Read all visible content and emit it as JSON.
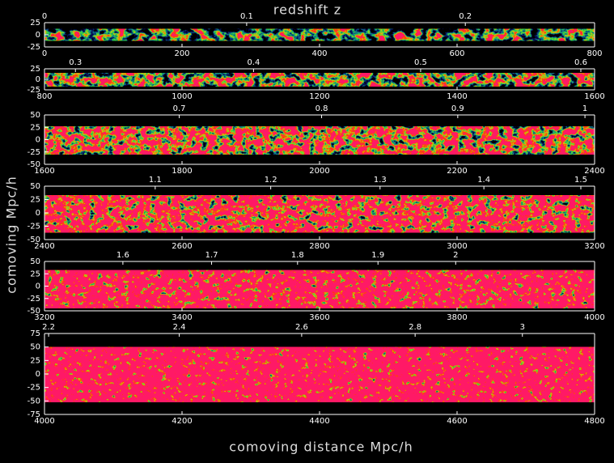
{
  "labels": {
    "top": "redshift z",
    "x": "comoving distance Mpc/h",
    "y": "comoving Mpc/h"
  },
  "chart_data": [
    {
      "type": "heatmap",
      "xlim": [
        0,
        800
      ],
      "xticks": [
        0,
        200,
        400,
        600,
        800
      ],
      "ylim": [
        -25,
        25
      ],
      "yticks": [
        25,
        0,
        -25
      ],
      "x2ticks": [
        {
          "value": 0,
          "label": "0"
        },
        {
          "value": 294,
          "label": "0.1"
        },
        {
          "value": 612,
          "label": "0.2"
        }
      ]
    },
    {
      "type": "heatmap",
      "xlim": [
        800,
        1600
      ],
      "xticks": [
        800,
        1000,
        1200,
        1400,
        1600
      ],
      "ylim": [
        -25,
        25
      ],
      "yticks": [
        25,
        0,
        -25
      ],
      "x2ticks": [
        {
          "value": 845,
          "label": "0.3"
        },
        {
          "value": 1104,
          "label": "0.4"
        },
        {
          "value": 1347,
          "label": "0.5"
        },
        {
          "value": 1580,
          "label": "0.6"
        }
      ]
    },
    {
      "type": "heatmap",
      "xlim": [
        1600,
        2400
      ],
      "xticks": [
        1600,
        1800,
        2000,
        2200,
        2400
      ],
      "ylim": [
        -50,
        50
      ],
      "yticks": [
        50,
        25,
        0,
        -25,
        -50
      ],
      "x2ticks": [
        {
          "value": 1796,
          "label": "0.7"
        },
        {
          "value": 2003,
          "label": "0.8"
        },
        {
          "value": 2201,
          "label": "0.9"
        },
        {
          "value": 2386,
          "label": "1"
        }
      ]
    },
    {
      "type": "heatmap",
      "xlim": [
        2400,
        3200
      ],
      "xticks": [
        2400,
        2600,
        2800,
        3000,
        3200
      ],
      "ylim": [
        -50,
        50
      ],
      "yticks": [
        50,
        25,
        0,
        -25,
        -50
      ],
      "x2ticks": [
        {
          "value": 2561,
          "label": "1.1"
        },
        {
          "value": 2729,
          "label": "1.2"
        },
        {
          "value": 2888,
          "label": "1.3"
        },
        {
          "value": 3039,
          "label": "1.4"
        },
        {
          "value": 3180,
          "label": "1.5"
        }
      ]
    },
    {
      "type": "heatmap",
      "xlim": [
        3200,
        4000
      ],
      "xticks": [
        3200,
        3400,
        3600,
        3800,
        4000
      ],
      "ylim": [
        -50,
        50
      ],
      "yticks": [
        50,
        25,
        0,
        -25,
        -50
      ],
      "x2ticks": [
        {
          "value": 3314,
          "label": "1.6"
        },
        {
          "value": 3443,
          "label": "1.7"
        },
        {
          "value": 3568,
          "label": "1.8"
        },
        {
          "value": 3685,
          "label": "1.9"
        },
        {
          "value": 3798,
          "label": "2"
        }
      ]
    },
    {
      "type": "heatmap",
      "xlim": [
        4000,
        4800
      ],
      "xticks": [
        4000,
        4200,
        4400,
        4600,
        4800
      ],
      "ylim": [
        -75,
        75
      ],
      "yticks": [
        75,
        50,
        25,
        0,
        -25,
        -50,
        -75
      ],
      "x2ticks": [
        {
          "value": 4006,
          "label": "2.2"
        },
        {
          "value": 4196,
          "label": "2.4"
        },
        {
          "value": 4374,
          "label": "2.6"
        },
        {
          "value": 4539,
          "label": "2.8"
        },
        {
          "value": 4695,
          "label": "3"
        }
      ]
    }
  ]
}
